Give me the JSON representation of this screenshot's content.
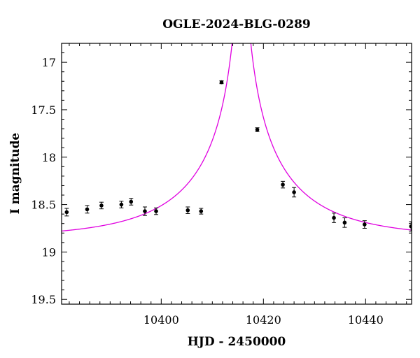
{
  "chart_data": {
    "type": "scatter",
    "title": "OGLE-2024-BLG-0289",
    "xlabel": "HJD - 2450000",
    "ylabel": "I magnitude",
    "xlim": [
      10380.5,
      10449
    ],
    "ylim": [
      19.55,
      16.8
    ],
    "y_inverted": true,
    "grid": false,
    "x_ticks": [
      10400,
      10420,
      10440
    ],
    "y_ticks": [
      17,
      17.5,
      18,
      18.5,
      19,
      19.5
    ],
    "x_tick_labels": [
      "10400",
      "10420",
      "10440"
    ],
    "y_tick_labels": [
      "17",
      "17.5",
      "18",
      "18.5",
      "19",
      "19.5"
    ],
    "colors": {
      "model": "#e000e0",
      "points": "#000000"
    },
    "series": [
      {
        "type": "scatter_errorbar",
        "x": [
          10381.5,
          10385.5,
          10388.3,
          10392.2,
          10394.1,
          10396.8,
          10399.0,
          10405.2,
          10407.8,
          10411.8,
          10418.8,
          10423.8,
          10426.0,
          10433.8,
          10435.9,
          10439.8,
          10448.9
        ],
        "y": [
          18.58,
          18.55,
          18.51,
          18.5,
          18.47,
          18.57,
          18.57,
          18.56,
          18.57,
          17.21,
          17.71,
          18.29,
          18.37,
          18.64,
          18.69,
          18.71,
          18.73
        ],
        "err": [
          0.04,
          0.04,
          0.035,
          0.035,
          0.035,
          0.045,
          0.035,
          0.035,
          0.03,
          0.015,
          0.02,
          0.035,
          0.05,
          0.05,
          0.05,
          0.04,
          0.05
        ]
      },
      {
        "type": "model_curve",
        "model": "point-lens microlensing",
        "t0": 10415.7,
        "tE": 24,
        "u0": 0.02,
        "baseline_mag": 18.85,
        "blend_fraction": 0.48
      }
    ]
  }
}
